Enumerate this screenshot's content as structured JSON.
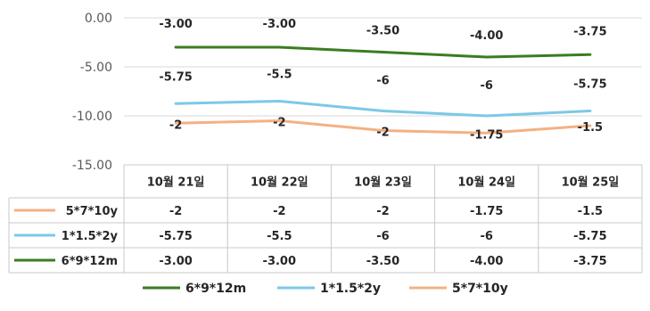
{
  "chart_data": {
    "type": "line",
    "title": "",
    "xlabel": "",
    "ylabel": "",
    "categories": [
      "10월 21일",
      "10월 22일",
      "10월 23일",
      "10월 24일",
      "10월 25일"
    ],
    "ylim": [
      -15,
      0
    ],
    "y_ticks": [
      "0.00",
      "-5.00",
      "-10.00",
      "-15.00"
    ],
    "grid": true,
    "legend_position": "bottom",
    "series": [
      {
        "name": "5*7*10y",
        "color": "#F4B183",
        "values": [
          -10.75,
          -10.5,
          -11.5,
          -11.75,
          -11.0
        ],
        "labels": [
          "-2",
          "-2",
          "-2",
          "-1.75",
          "-1.5"
        ]
      },
      {
        "name": "1*1.5*2y",
        "color": "#7CC8E8",
        "values": [
          -8.75,
          -8.5,
          -9.5,
          -10.0,
          -9.5
        ],
        "labels": [
          "-5.75",
          "-5.5",
          "-6",
          "-6",
          "-5.75"
        ]
      },
      {
        "name": "6*9*12m",
        "color": "#3A7D22",
        "values": [
          -3.0,
          -3.0,
          -3.5,
          -4.0,
          -3.75
        ],
        "labels": [
          "-3.00",
          "-3.00",
          "-3.50",
          "-4.00",
          "-3.75"
        ]
      }
    ],
    "legend_order": [
      "6*9*12m",
      "1*1.5*2y",
      "5*7*10y"
    ]
  }
}
